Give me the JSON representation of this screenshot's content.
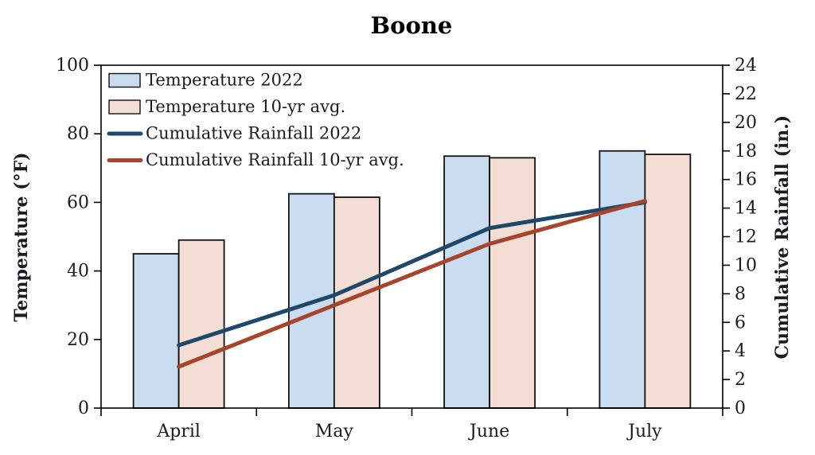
{
  "title": "Boone",
  "chart_data": {
    "type": "bar",
    "subtype": "combo-bar-line-dual-axis",
    "title": "Boone",
    "categories": [
      "April",
      "May",
      "June",
      "July"
    ],
    "axes": {
      "left": {
        "label": "Temperature (°F)",
        "min": 0,
        "max": 100,
        "step": 20
      },
      "right": {
        "label": "Cumulative Rainfall (in.)",
        "min": 0,
        "max": 24,
        "step": 2
      }
    },
    "series": [
      {
        "name": "Temperature 2022",
        "type": "bar",
        "axis": "left",
        "color": "#c9dcf0",
        "border": "#111111",
        "values": [
          45,
          62.5,
          73.5,
          75
        ]
      },
      {
        "name": "Temperature 10-yr avg.",
        "type": "bar",
        "axis": "left",
        "color": "#f4ddd5",
        "border": "#111111",
        "values": [
          49,
          61.5,
          73,
          74
        ]
      },
      {
        "name": "Cumulative Rainfall 2022",
        "type": "line",
        "axis": "right",
        "color": "#1d4869",
        "values": [
          4.4,
          7.9,
          12.6,
          14.4
        ]
      },
      {
        "name": "Cumulative Rainfall 10-yr avg.",
        "type": "line",
        "axis": "right",
        "color": "#a8432c",
        "values": [
          2.9,
          7.2,
          11.5,
          14.5
        ]
      }
    ],
    "legend_position": "top-left-inside",
    "grid": "off",
    "frame": "full-border",
    "text_color": "#1a1a22",
    "axis_color": "#000000"
  }
}
